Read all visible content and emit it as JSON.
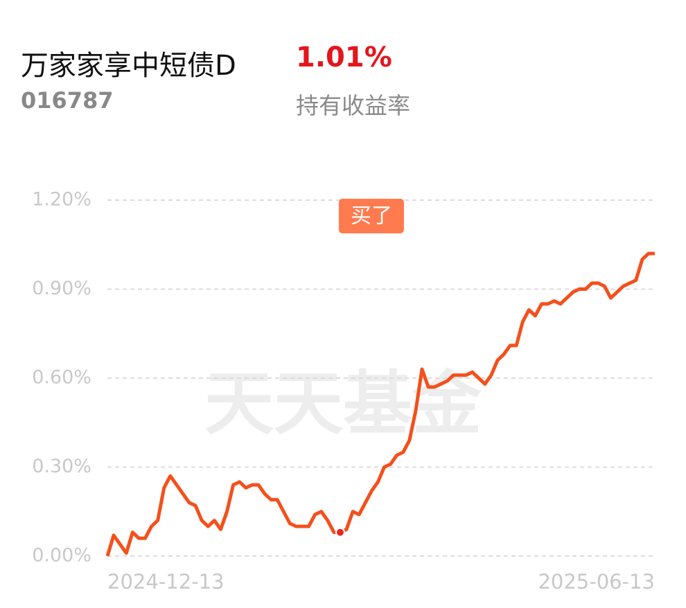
{
  "header": {
    "title": "万家家享中短债D",
    "return": "1.01%",
    "code": "016787",
    "return_label": "持有收益率"
  },
  "chart_data": {
    "type": "line",
    "watermark": "天天基金",
    "categories": [
      "2024-12-13",
      null,
      null,
      null,
      null,
      null,
      null,
      null,
      null,
      null,
      null,
      null,
      null,
      null,
      null,
      null,
      null,
      null,
      null,
      null,
      null,
      null,
      null,
      null,
      null,
      null,
      null,
      null,
      null,
      null,
      null,
      null,
      null,
      null,
      null,
      null,
      null,
      null,
      null,
      null,
      null,
      null,
      null,
      null,
      null,
      null,
      null,
      null,
      null,
      null,
      null,
      null,
      null,
      null,
      null,
      null,
      null,
      null,
      null,
      null,
      null,
      null,
      null,
      null,
      null,
      null,
      null,
      null,
      null,
      null,
      null,
      null,
      null,
      null,
      null,
      null,
      null,
      null,
      null,
      null,
      null,
      null,
      null,
      null,
      null,
      null,
      null,
      "2025-06-13"
    ],
    "series": [
      {
        "color": "#f4501c",
        "values": [
          0,
          0.07,
          0.04,
          0.01,
          0.08,
          0.06,
          0.06,
          0.1,
          0.12,
          0.23,
          0.27,
          0.24,
          0.21,
          0.18,
          0.17,
          0.12,
          0.1,
          0.12,
          0.09,
          0.15,
          0.24,
          0.25,
          0.23,
          0.24,
          0.24,
          0.21,
          0.19,
          0.19,
          0.15,
          0.11,
          0.1,
          0.1,
          0.1,
          0.14,
          0.15,
          0.12,
          0.08,
          0.08,
          0.09,
          0.15,
          0.14,
          0.18,
          0.22,
          0.25,
          0.3,
          0.31,
          0.34,
          0.35,
          0.39,
          0.49,
          0.63,
          0.57,
          0.57,
          0.58,
          0.59,
          0.61,
          0.61,
          0.61,
          0.62,
          0.6,
          0.58,
          0.61,
          0.66,
          0.68,
          0.71,
          0.71,
          0.79,
          0.83,
          0.81,
          0.85,
          0.85,
          0.86,
          0.85,
          0.87,
          0.89,
          0.9,
          0.9,
          0.92,
          0.92,
          0.91,
          0.87,
          0.89,
          0.91,
          0.92,
          0.93,
          1.0,
          1.02,
          1.02
        ]
      }
    ],
    "annotation": {
      "text": "买了",
      "index": 37,
      "color": "#ff7b4f"
    },
    "ylim": [
      0,
      1.2
    ],
    "yticks": [
      {
        "value": 0,
        "label": "0.00%"
      },
      {
        "value": 0.3,
        "label": "0.30%"
      },
      {
        "value": 0.6,
        "label": "0.60%"
      },
      {
        "value": 0.9,
        "label": "0.90%"
      },
      {
        "value": 1.2,
        "label": "1.20%"
      }
    ],
    "grid": true
  }
}
